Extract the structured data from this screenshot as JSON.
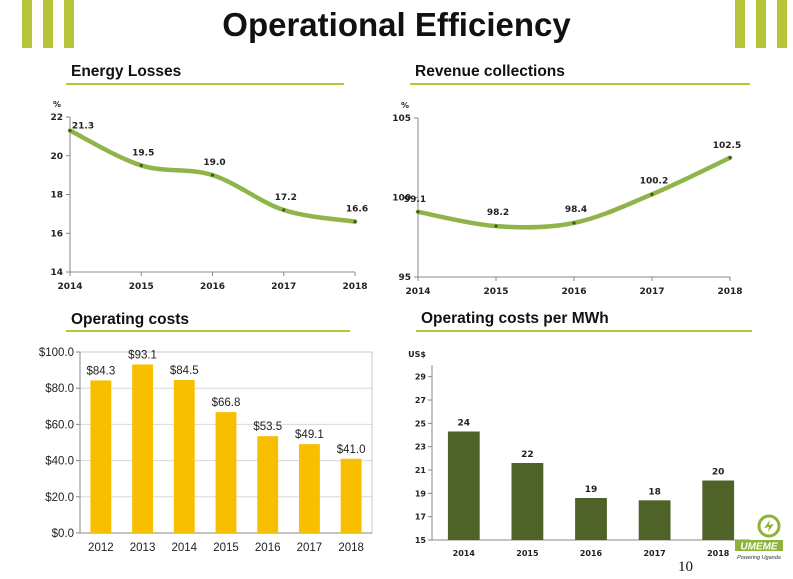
{
  "page": {
    "title": "Operational Efficiency",
    "page_number": "10",
    "logo": {
      "name": "UMEME",
      "tagline": "Powering Uganda"
    },
    "colors": {
      "accent": "#b6c538",
      "line": "#8fb54a",
      "orange_bar": "#f8be00",
      "green_bar": "#4f6228"
    }
  },
  "chart_data": [
    {
      "id": "energy-losses",
      "type": "line",
      "title": "Energy Losses",
      "ylabel": "%",
      "x": [
        "2014",
        "2015",
        "2016",
        "2017",
        "2018"
      ],
      "values": [
        21.3,
        19.5,
        19.0,
        17.2,
        16.6
      ],
      "labels": [
        "21.3",
        "19.5",
        "19.0",
        "17.2",
        "16.6"
      ],
      "ylim": [
        14,
        22
      ],
      "yticks": [
        "14",
        "16",
        "18",
        "20",
        "22"
      ],
      "grid": false,
      "legend": "none"
    },
    {
      "id": "revenue-collections",
      "type": "line",
      "title": "Revenue collections",
      "ylabel": "%",
      "x": [
        "2014",
        "2015",
        "2016",
        "2017",
        "2018"
      ],
      "values": [
        99.1,
        98.2,
        98.4,
        100.2,
        102.5
      ],
      "labels": [
        "99.1",
        "98.2",
        "98.4",
        "100.2",
        "102.5"
      ],
      "ylim": [
        95,
        105
      ],
      "yticks": [
        "95",
        "100",
        "105"
      ],
      "grid": false,
      "legend": "none"
    },
    {
      "id": "operating-costs",
      "type": "bar",
      "title": "Operating costs",
      "categories": [
        "2012",
        "2013",
        "2014",
        "2015",
        "2016",
        "2017",
        "2018"
      ],
      "values": [
        84.3,
        93.1,
        84.5,
        66.8,
        53.5,
        49.1,
        41.0
      ],
      "labels": [
        "$84.3",
        "$93.1",
        "$84.5",
        "$66.8",
        "$53.5",
        "$49.1",
        "$41.0"
      ],
      "ylim": [
        0,
        100
      ],
      "yticks": [
        "$0.0",
        "$20.0",
        "$40.0",
        "$60.0",
        "$80.0",
        "$100.0"
      ],
      "grid": true,
      "legend": "none"
    },
    {
      "id": "operating-costs-per-mwh",
      "type": "bar",
      "title": "Operating costs per MWh",
      "ylabel": "US$",
      "categories": [
        "2014",
        "2015",
        "2016",
        "2017",
        "2018"
      ],
      "values": [
        24.3,
        21.6,
        18.6,
        18.4,
        20.1
      ],
      "labels": [
        "24",
        "22",
        "19",
        "18",
        "20"
      ],
      "ylim": [
        15,
        30
      ],
      "yticks": [
        "15",
        "17",
        "19",
        "21",
        "23",
        "25",
        "27",
        "29"
      ],
      "grid": false,
      "legend": "none"
    }
  ]
}
